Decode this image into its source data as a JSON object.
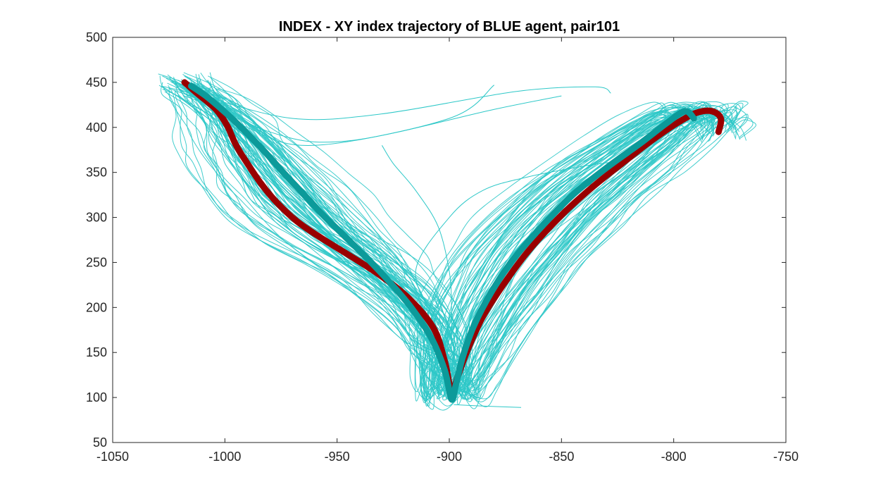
{
  "chart_data": {
    "type": "line",
    "title": "INDEX - XY index trajectory of BLUE agent, pair101",
    "xlabel": "",
    "ylabel": "",
    "xlim": [
      -1050,
      -750
    ],
    "ylim": [
      50,
      500
    ],
    "xticks": [
      -1050,
      -1000,
      -950,
      -900,
      -850,
      -800,
      -750
    ],
    "yticks": [
      50,
      100,
      150,
      200,
      250,
      300,
      350,
      400,
      450,
      500
    ],
    "xtick_labels": [
      "-1050",
      "-1000",
      "-950",
      "-900",
      "-850",
      "-800",
      "-750"
    ],
    "ytick_labels": [
      "50",
      "100",
      "150",
      "200",
      "250",
      "300",
      "350",
      "400",
      "450",
      "500"
    ],
    "grid": false,
    "box": true,
    "colors": {
      "individual_trials": "#2ec8c8",
      "mean_blue": "#0c9a9a",
      "mean_red": "#990000"
    },
    "series": [
      {
        "style": "mean_red",
        "x": [
          -1018,
          -1012,
          -1004,
          -999,
          -995,
          -990,
          -984,
          -977,
          -968,
          -957,
          -944,
          -931,
          -918,
          -907,
          -902,
          -899,
          -896,
          -892,
          -885,
          -876,
          -865,
          -851,
          -837,
          -823,
          -810,
          -799,
          -790,
          -783,
          -779,
          -780
        ],
        "y": [
          450,
          437,
          420,
          402,
          380,
          360,
          338,
          317,
          296,
          277,
          257,
          236,
          210,
          177,
          140,
          107,
          125,
          152,
          190,
          225,
          262,
          300,
          332,
          360,
          385,
          404,
          416,
          418,
          410,
          395
        ]
      },
      {
        "style": "mean_blue",
        "x": [
          -1015,
          -1008,
          -1000,
          -992,
          -983,
          -974,
          -965,
          -956,
          -947,
          -938,
          -928,
          -917,
          -908,
          -902,
          -899,
          -897,
          -894,
          -889,
          -881,
          -871,
          -858,
          -845,
          -830,
          -815,
          -803,
          -795,
          -791
        ],
        "y": [
          446,
          434,
          417,
          398,
          375,
          350,
          326,
          302,
          280,
          258,
          232,
          200,
          166,
          130,
          98,
          115,
          145,
          180,
          218,
          255,
          292,
          325,
          355,
          382,
          405,
          418,
          410
        ]
      }
    ]
  }
}
